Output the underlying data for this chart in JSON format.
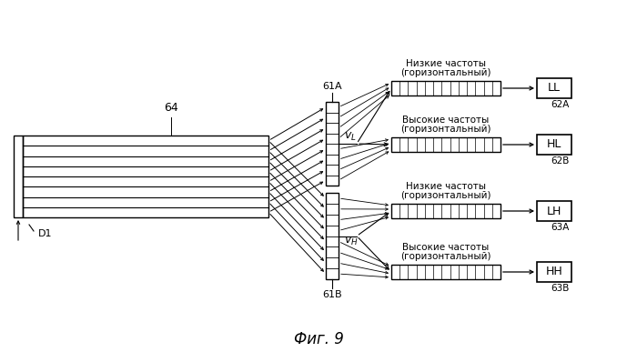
{
  "fig_title": "Фиг. 9",
  "label_64": "64",
  "label_D1": "D1",
  "label_61A": "61A",
  "label_61B": "61B",
  "label_vL": "vₗ",
  "label_vH": "vₕ",
  "label_62A": "62A",
  "label_62B": "62B",
  "label_63A": "63A",
  "label_63B": "63B",
  "box_LL": "LL",
  "box_HL": "HL",
  "box_LH": "LH",
  "box_HH": "HH",
  "text_nizk": "Низкие частоты",
  "text_vysok": "Высокие частоты",
  "text_goriz": "(горизонтальный)",
  "bg_color": "#ffffff",
  "line_color": "#000000"
}
